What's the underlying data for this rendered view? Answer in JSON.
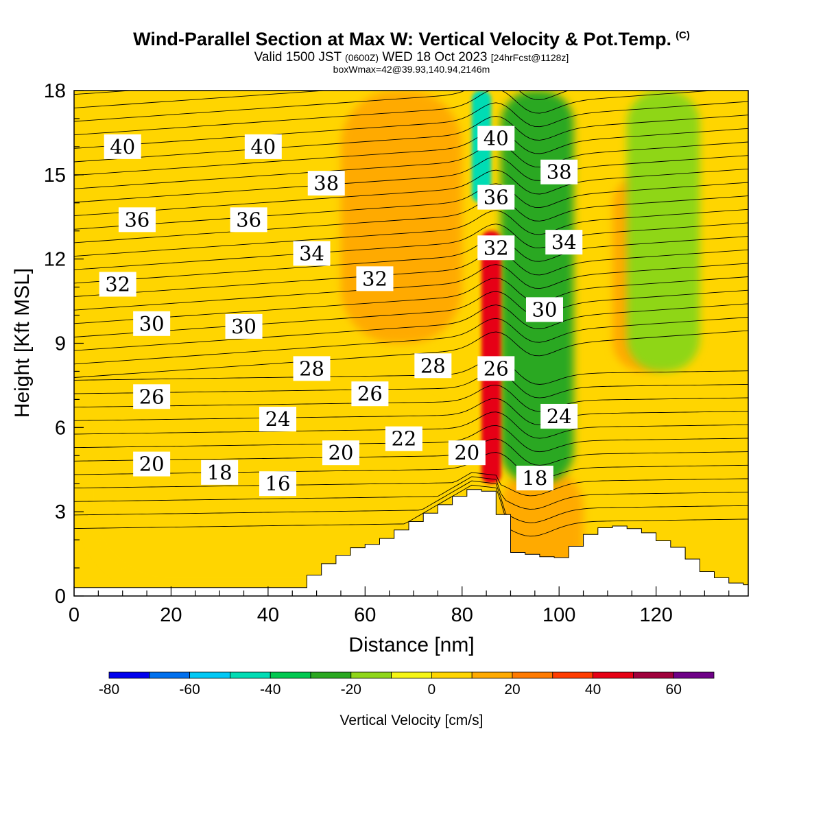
{
  "header": {
    "title": "Wind-Parallel Section at Max W: Vertical Velocity & Pot.Temp.",
    "title_suffix": "(C)",
    "valid_prefix": "Valid 1500 JST",
    "valid_utc": "(0600Z)",
    "valid_date": "WED 18 Oct 2023",
    "forecast": "[24hrFcst@1128z]",
    "box_info": "boxWmax=42@39.93,140.94,2146m"
  },
  "chart_data": {
    "type": "heatmap",
    "xlabel": "Distance [nm]",
    "ylabel": "Height [Kft MSL]",
    "xlim": [
      0,
      139
    ],
    "ylim": [
      0,
      18
    ],
    "x_ticks": [
      0,
      20,
      40,
      60,
      80,
      100,
      120
    ],
    "y_ticks": [
      0,
      3,
      6,
      9,
      12,
      15,
      18
    ],
    "colorbar": {
      "label": "Vertical Velocity [cm/s]",
      "bounds": [
        -80,
        -70,
        -60,
        -50,
        -40,
        -30,
        -20,
        -10,
        0,
        10,
        20,
        30,
        40,
        50,
        60,
        70
      ],
      "tick_labels": [
        -80,
        -60,
        -40,
        -20,
        0,
        20,
        40,
        60
      ],
      "colors": [
        "#0000ee",
        "#0070ee",
        "#00c8f5",
        "#00dcb4",
        "#00c850",
        "#2aa820",
        "#8fd619",
        "#f5f515",
        "#ffd500",
        "#ffaa00",
        "#ff7a00",
        "#ff3c00",
        "#e60014",
        "#a0003c",
        "#6e0087"
      ]
    },
    "terrain_kft": [
      [
        0,
        0.3
      ],
      [
        48,
        0.3
      ],
      [
        48.5,
        0.6
      ],
      [
        52,
        1.1
      ],
      [
        55,
        1.4
      ],
      [
        58,
        1.7
      ],
      [
        63,
        1.9
      ],
      [
        68,
        2.4
      ],
      [
        73,
        2.9
      ],
      [
        78,
        3.4
      ],
      [
        82,
        3.8
      ],
      [
        87,
        3.7
      ],
      [
        88,
        3.2
      ],
      [
        90,
        2.0
      ],
      [
        92,
        1.4
      ],
      [
        95,
        1.5
      ],
      [
        100,
        1.3
      ],
      [
        103,
        1.7
      ],
      [
        108,
        2.4
      ],
      [
        113,
        2.5
      ],
      [
        118,
        2.3
      ],
      [
        121,
        2.0
      ],
      [
        124,
        1.8
      ],
      [
        127,
        1.4
      ],
      [
        130,
        0.9
      ],
      [
        133,
        0.7
      ],
      [
        135,
        0.5
      ],
      [
        139,
        0.4
      ]
    ],
    "velocity_regions": [
      {
        "name": "broad weak updraft",
        "x": [
          2,
          85
        ],
        "y": [
          0.3,
          7
        ],
        "w": 5
      },
      {
        "name": "upper updraft band",
        "x": [
          55,
          80
        ],
        "y": [
          9,
          18
        ],
        "w": 10
      },
      {
        "name": "lee updraft",
        "x": [
          88,
          105
        ],
        "y": [
          0.5,
          4.5
        ],
        "w": 12
      },
      {
        "name": "eastern updraft",
        "x": [
          111,
          125
        ],
        "y": [
          8,
          15
        ],
        "w": 10
      },
      {
        "name": "lee downdraft band",
        "x": [
          88,
          103
        ],
        "y": [
          4,
          18
        ],
        "w": -25
      },
      {
        "name": "eastern downdraft band",
        "x": [
          114,
          129
        ],
        "y": [
          8,
          18
        ],
        "w": -15
      },
      {
        "name": "max updraft",
        "x": [
          84,
          88
        ],
        "y": [
          4,
          13
        ],
        "w": 42
      },
      {
        "name": "max downdraft",
        "x": [
          82,
          86
        ],
        "y": [
          14,
          18
        ],
        "w": -45
      }
    ],
    "isentrope_labels": [
      {
        "text": "40",
        "x": 10,
        "y": 16.0
      },
      {
        "text": "40",
        "x": 39,
        "y": 16.0
      },
      {
        "text": "38",
        "x": 52,
        "y": 14.7
      },
      {
        "text": "40",
        "x": 87,
        "y": 16.3
      },
      {
        "text": "38",
        "x": 100,
        "y": 15.1
      },
      {
        "text": "36",
        "x": 13,
        "y": 13.4
      },
      {
        "text": "36",
        "x": 36,
        "y": 13.4
      },
      {
        "text": "36",
        "x": 87,
        "y": 14.2
      },
      {
        "text": "34",
        "x": 49,
        "y": 12.2
      },
      {
        "text": "32",
        "x": 87,
        "y": 12.4
      },
      {
        "text": "34",
        "x": 101,
        "y": 12.6
      },
      {
        "text": "32",
        "x": 9,
        "y": 11.1
      },
      {
        "text": "32",
        "x": 62,
        "y": 11.3
      },
      {
        "text": "30",
        "x": 97,
        "y": 10.2
      },
      {
        "text": "30",
        "x": 16,
        "y": 9.7
      },
      {
        "text": "30",
        "x": 35,
        "y": 9.6
      },
      {
        "text": "28",
        "x": 49,
        "y": 8.1
      },
      {
        "text": "28",
        "x": 74,
        "y": 8.2
      },
      {
        "text": "26",
        "x": 87,
        "y": 8.1
      },
      {
        "text": "26",
        "x": 16,
        "y": 7.1
      },
      {
        "text": "26",
        "x": 61,
        "y": 7.2
      },
      {
        "text": "24",
        "x": 42,
        "y": 6.3
      },
      {
        "text": "24",
        "x": 100,
        "y": 6.4
      },
      {
        "text": "22",
        "x": 68,
        "y": 5.6
      },
      {
        "text": "20",
        "x": 55,
        "y": 5.1
      },
      {
        "text": "20",
        "x": 81,
        "y": 5.1
      },
      {
        "text": "20",
        "x": 16,
        "y": 4.7
      },
      {
        "text": "18",
        "x": 30,
        "y": 4.4
      },
      {
        "text": "18",
        "x": 95,
        "y": 4.2
      },
      {
        "text": "16",
        "x": 42,
        "y": 4.0
      }
    ]
  }
}
